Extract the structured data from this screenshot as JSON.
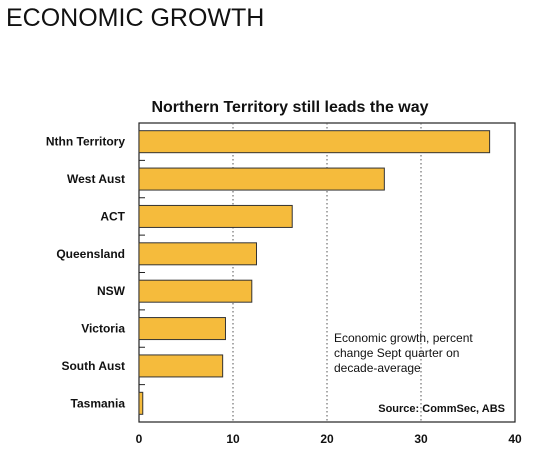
{
  "page": {
    "heading": "ECONOMIC GROWTH"
  },
  "chart_data": {
    "type": "bar",
    "orientation": "horizontal",
    "title": "Northern Territory still leads the way",
    "categories": [
      "Nthn Territory",
      "West Aust",
      "ACT",
      "Queensland",
      "NSW",
      "Victoria",
      "South Aust",
      "Tasmania"
    ],
    "values": [
      37.3,
      26.1,
      16.3,
      12.5,
      12.0,
      9.2,
      8.9,
      0.4
    ],
    "xlim": [
      0,
      40
    ],
    "xticks": [
      0,
      10,
      20,
      30,
      40
    ],
    "xlabel": "",
    "ylabel": "",
    "grid": "vertical dotted",
    "bar_color": "#f5bb3c",
    "bar_edge_color": "#333333",
    "annotation": [
      "Economic growth, percent",
      "change Sept quarter on",
      "decade-average"
    ],
    "source": "Source: CommSec, ABS"
  }
}
